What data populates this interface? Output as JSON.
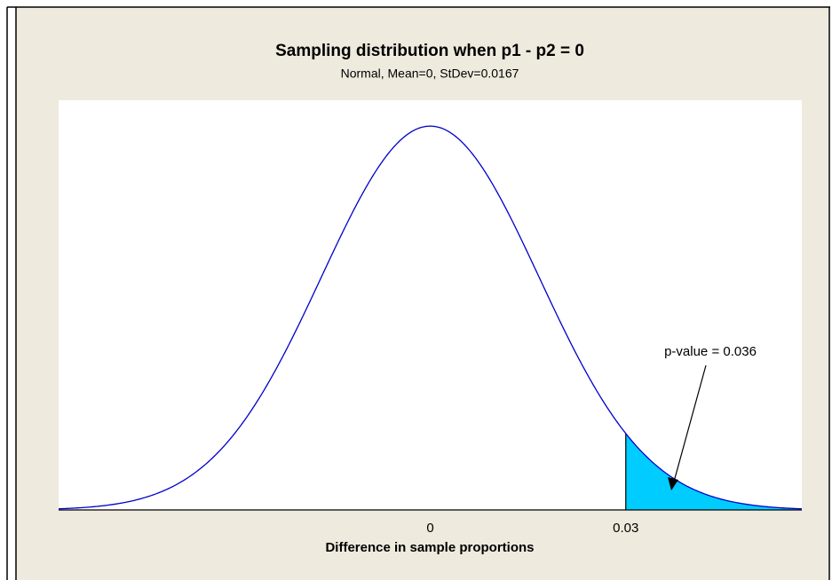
{
  "chart_data": {
    "type": "density",
    "title": "Sampling distribution when p1 - p2 = 0",
    "subtitle": "Normal, Mean=0, StDev=0.0167",
    "x_label": "Difference in sample proportions",
    "mean": 0,
    "stdev": 0.0167,
    "xlim": [
      -0.057,
      0.057
    ],
    "xticks": [
      0,
      0.03
    ],
    "ylim": [
      0,
      25.5
    ],
    "shade_from": 0.03,
    "annotation": "p-value = 0.036",
    "color": "#0000cc",
    "shade_color": "#00ccff"
  }
}
